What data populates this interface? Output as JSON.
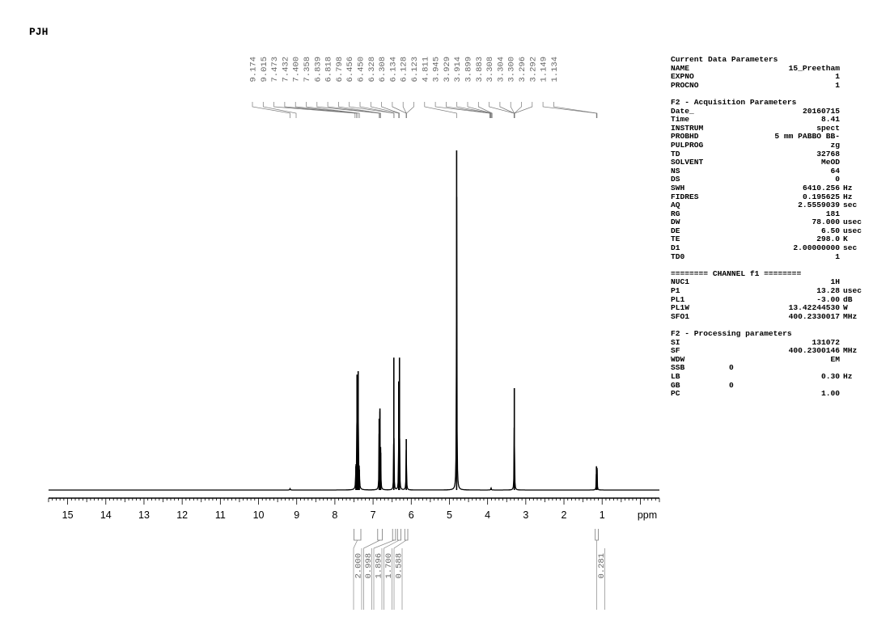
{
  "header": {
    "title": "PJH"
  },
  "chart_data": {
    "type": "line",
    "title": "PJH",
    "xlabel": "ppm",
    "xlim": [
      15.5,
      -0.5
    ],
    "x_reversed": true,
    "x_ticks": [
      15,
      14,
      13,
      12,
      11,
      10,
      9,
      8,
      7,
      6,
      5,
      4,
      3,
      2,
      1
    ],
    "ylim": [
      0,
      1.0
    ],
    "grid": false,
    "peak_labels": [
      "9.174",
      "9.015",
      "7.473",
      "7.432",
      "7.400",
      "7.358",
      "6.839",
      "6.818",
      "6.798",
      "6.456",
      "6.450",
      "6.328",
      "6.308",
      "6.134",
      "6.128",
      "6.123",
      "4.811",
      "3.945",
      "3.929",
      "3.914",
      "3.899",
      "3.883",
      "3.308",
      "3.304",
      "3.300",
      "3.296",
      "3.292",
      "1.149",
      "1.134"
    ],
    "peaks": [
      {
        "x": 7.45,
        "y": 0.07,
        "w": 0.012
      },
      {
        "x": 7.42,
        "y": 0.34,
        "w": 0.012
      },
      {
        "x": 7.39,
        "y": 0.35,
        "w": 0.012
      },
      {
        "x": 7.36,
        "y": 0.06,
        "w": 0.012
      },
      {
        "x": 6.84,
        "y": 0.21,
        "w": 0.01
      },
      {
        "x": 6.82,
        "y": 0.24,
        "w": 0.01
      },
      {
        "x": 6.8,
        "y": 0.11,
        "w": 0.01
      },
      {
        "x": 6.456,
        "y": 0.39,
        "w": 0.008
      },
      {
        "x": 6.328,
        "y": 0.32,
        "w": 0.008
      },
      {
        "x": 6.308,
        "y": 0.39,
        "w": 0.008
      },
      {
        "x": 6.13,
        "y": 0.15,
        "w": 0.012
      },
      {
        "x": 4.811,
        "y": 1.0,
        "w": 0.012
      },
      {
        "x": 3.91,
        "y": 0.006,
        "w": 0.015
      },
      {
        "x": 3.3,
        "y": 0.3,
        "w": 0.01
      },
      {
        "x": 1.149,
        "y": 0.07,
        "w": 0.01
      },
      {
        "x": 1.134,
        "y": 0.065,
        "w": 0.01
      },
      {
        "x": 9.174,
        "y": 0.004,
        "w": 0.015
      }
    ],
    "integrals": [
      {
        "label": "2.000",
        "from": 7.5,
        "to": 7.32
      },
      {
        "label": "0.998",
        "from": 6.88,
        "to": 6.76
      },
      {
        "label": "1.896",
        "from": 6.49,
        "to": 6.41
      },
      {
        "label": "1.700",
        "from": 6.36,
        "to": 6.27
      },
      {
        "label": "0.588",
        "from": 6.17,
        "to": 6.09
      },
      {
        "label": "0.281",
        "from": 1.18,
        "to": 1.1
      }
    ]
  },
  "parameters": [
    {
      "title": "Current Data Parameters",
      "rows": [
        {
          "k": "NAME",
          "v": "15_Preetham",
          "u": ""
        },
        {
          "k": "EXPNO",
          "v": "1",
          "u": ""
        },
        {
          "k": "PROCNO",
          "v": "1",
          "u": ""
        }
      ]
    },
    {
      "title": "F2 - Acquisition Parameters",
      "rows": [
        {
          "k": "Date_",
          "v": "20160715",
          "u": ""
        },
        {
          "k": "Time",
          "v": "8.41",
          "u": ""
        },
        {
          "k": "INSTRUM",
          "v": "spect",
          "u": ""
        },
        {
          "k": "PROBHD",
          "v": "5 mm PABBO BB-",
          "u": ""
        },
        {
          "k": "PULPROG",
          "v": "zg",
          "u": ""
        },
        {
          "k": "TD",
          "v": "32768",
          "u": ""
        },
        {
          "k": "SOLVENT",
          "v": "MeOD",
          "u": ""
        },
        {
          "k": "NS",
          "v": "64",
          "u": ""
        },
        {
          "k": "DS",
          "v": "0",
          "u": ""
        },
        {
          "k": "SWH",
          "v": "6410.256",
          "u": "Hz"
        },
        {
          "k": "FIDRES",
          "v": "0.195625",
          "u": "Hz"
        },
        {
          "k": "AQ",
          "v": "2.5559039",
          "u": "sec"
        },
        {
          "k": "RG",
          "v": "181",
          "u": ""
        },
        {
          "k": "DW",
          "v": "78.000",
          "u": "usec"
        },
        {
          "k": "DE",
          "v": "6.50",
          "u": "usec"
        },
        {
          "k": "TE",
          "v": "298.0",
          "u": "K"
        },
        {
          "k": "D1",
          "v": "2.00000000",
          "u": "sec"
        },
        {
          "k": "TD0",
          "v": "1",
          "u": ""
        }
      ]
    },
    {
      "title": "======== CHANNEL f1 ========",
      "rows": [
        {
          "k": "NUC1",
          "v": "1H",
          "u": ""
        },
        {
          "k": "P1",
          "v": "13.28",
          "u": "usec"
        },
        {
          "k": "PL1",
          "v": "-3.00",
          "u": "dB"
        },
        {
          "k": "PL1W",
          "v": "13.42244530",
          "u": "W"
        },
        {
          "k": "SFO1",
          "v": "400.2330017",
          "u": "MHz"
        }
      ]
    },
    {
      "title": "F2 - Processing parameters",
      "rows": [
        {
          "k": "SI",
          "v": "131072",
          "u": ""
        },
        {
          "k": "SF",
          "v": "400.2300146",
          "u": "MHz"
        },
        {
          "k": "WDW",
          "v": "EM",
          "u": ""
        },
        {
          "k": "SSB",
          "v": "0",
          "u": "",
          "left": true
        },
        {
          "k": "LB",
          "v": "0.30",
          "u": "Hz"
        },
        {
          "k": "GB",
          "v": "0",
          "u": "",
          "left": true
        },
        {
          "k": "PC",
          "v": "1.00",
          "u": ""
        }
      ]
    }
  ]
}
